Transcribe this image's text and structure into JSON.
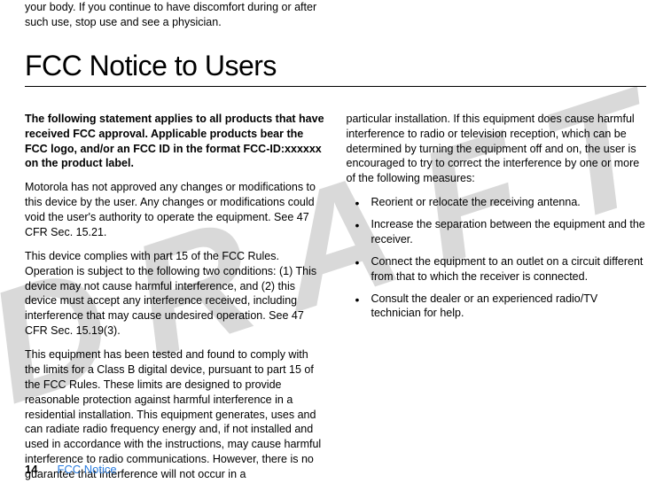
{
  "watermark": "DRAFT",
  "intro": "your body. If you continue to have discomfort during or after such use, stop use and see a physician.",
  "section_title": "FCC Notice to Users",
  "left_col": {
    "bold": "The following statement applies to all products that have received FCC approval. Applicable products bear the FCC logo, and/or an FCC ID in the format FCC-ID:xxxxxx on the product label.",
    "p1": "Motorola has not approved any changes or modifications to this device by the user. Any changes or modifications could void the user's authority to operate the equipment. See 47 CFR Sec. 15.21.",
    "p2": "This device complies with part 15 of the FCC Rules. Operation is subject to the following two conditions: (1) This device may not cause harmful interference, and (2) this device must accept any interference received, including interference that may cause undesired operation. See 47 CFR Sec. 15.19(3).",
    "p3": "This equipment has been tested and found to comply with the limits for a Class B digital device, pursuant to part 15 of the FCC Rules. These limits are designed to provide reasonable protection against harmful interference in a residential installation. This equipment generates, uses and can radiate radio frequency energy and, if not installed and used in accordance with the instructions, may cause harmful interference to radio communications. However, there is no guarantee that interference will not occur in a"
  },
  "right_col": {
    "p1": "particular installation. If this equipment does cause harmful interference to radio or television reception, which can be determined by turning the equipment off and on, the user is encouraged to try to correct the interference by one or more of the following measures:",
    "bullets": [
      "Reorient or relocate the receiving antenna.",
      "Increase the separation between the equipment and the receiver.",
      "Connect the equipment to an outlet on a circuit different from that to which the receiver is connected.",
      "Consult the dealer or an experienced radio/TV technician for help."
    ]
  },
  "footer": {
    "page": "14",
    "label": "FCC Notice"
  }
}
